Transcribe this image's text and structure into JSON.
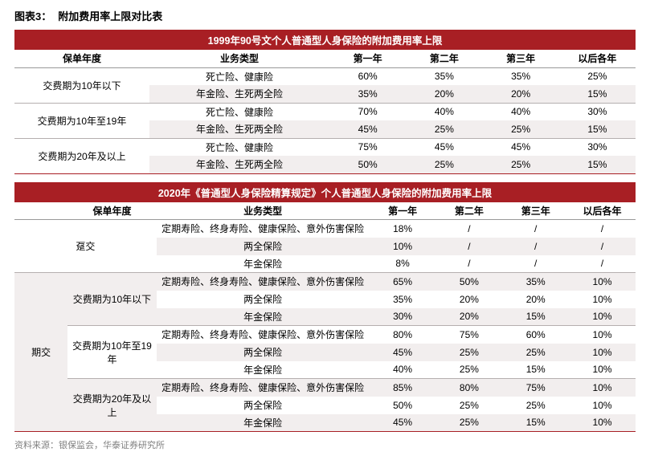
{
  "title": {
    "label": "图表3：",
    "text": "附加费用率上限对比表"
  },
  "colors": {
    "header_bg": "#a81f24",
    "header_text": "#ffffff",
    "stripe_odd": "#ffffff",
    "stripe_even": "#f2eeee",
    "border": "#b5afaf",
    "text": "#000000",
    "source": "#808080"
  },
  "table1": {
    "banner": "1999年90号文个人普通型人身保险的附加费用率上限",
    "headers": [
      "保单年度",
      "业务类型",
      "第一年",
      "第二年",
      "第三年",
      "以后各年"
    ],
    "groups": [
      {
        "label": "交费期为10年以下",
        "rows": [
          {
            "type": "死亡险、健康险",
            "y1": "60%",
            "y2": "35%",
            "y3": "35%",
            "y4": "25%"
          },
          {
            "type": "年金险、生死两全险",
            "y1": "35%",
            "y2": "20%",
            "y3": "20%",
            "y4": "15%"
          }
        ]
      },
      {
        "label": "交费期为10年至19年",
        "rows": [
          {
            "type": "死亡险、健康险",
            "y1": "70%",
            "y2": "40%",
            "y3": "40%",
            "y4": "30%"
          },
          {
            "type": "年金险、生死两全险",
            "y1": "45%",
            "y2": "25%",
            "y3": "25%",
            "y4": "15%"
          }
        ]
      },
      {
        "label": "交费期为20年及以上",
        "rows": [
          {
            "type": "死亡险、健康险",
            "y1": "75%",
            "y2": "45%",
            "y3": "45%",
            "y4": "30%"
          },
          {
            "type": "年金险、生死两全险",
            "y1": "50%",
            "y2": "25%",
            "y3": "25%",
            "y4": "15%"
          }
        ]
      }
    ]
  },
  "table2": {
    "banner": "2020年《普通型人身保险精算规定》个人普通型人身保险的附加费用率上限",
    "headers": [
      "保单年度",
      "业务类型",
      "第一年",
      "第二年",
      "第三年",
      "以后各年"
    ],
    "section1": {
      "label": "趸交",
      "rows": [
        {
          "type": "定期寿险、终身寿险、健康保险、意外伤害保险",
          "y1": "18%",
          "y2": "/",
          "y3": "/",
          "y4": "/"
        },
        {
          "type": "两全保险",
          "y1": "10%",
          "y2": "/",
          "y3": "/",
          "y4": "/"
        },
        {
          "type": "年金保险",
          "y1": "8%",
          "y2": "/",
          "y3": "/",
          "y4": "/"
        }
      ]
    },
    "section2": {
      "label": "期交",
      "groups": [
        {
          "label": "交费期为10年以下",
          "rows": [
            {
              "type": "定期寿险、终身寿险、健康保险、意外伤害保险",
              "y1": "65%",
              "y2": "50%",
              "y3": "35%",
              "y4": "10%"
            },
            {
              "type": "两全保险",
              "y1": "35%",
              "y2": "20%",
              "y3": "20%",
              "y4": "10%"
            },
            {
              "type": "年金保险",
              "y1": "30%",
              "y2": "20%",
              "y3": "15%",
              "y4": "10%"
            }
          ]
        },
        {
          "label": "交费期为10年至19年",
          "rows": [
            {
              "type": "定期寿险、终身寿险、健康保险、意外伤害保险",
              "y1": "80%",
              "y2": "75%",
              "y3": "60%",
              "y4": "10%"
            },
            {
              "type": "两全保险",
              "y1": "45%",
              "y2": "25%",
              "y3": "25%",
              "y4": "10%"
            },
            {
              "type": "年金保险",
              "y1": "40%",
              "y2": "25%",
              "y3": "15%",
              "y4": "10%"
            }
          ]
        },
        {
          "label": "交费期为20年及以上",
          "rows": [
            {
              "type": "定期寿险、终身寿险、健康保险、意外伤害保险",
              "y1": "85%",
              "y2": "80%",
              "y3": "75%",
              "y4": "10%"
            },
            {
              "type": "两全保险",
              "y1": "50%",
              "y2": "25%",
              "y3": "25%",
              "y4": "10%"
            },
            {
              "type": "年金保险",
              "y1": "45%",
              "y2": "25%",
              "y3": "15%",
              "y4": "10%"
            }
          ]
        }
      ]
    }
  },
  "source": "资料来源：银保监会，华泰证券研究所"
}
